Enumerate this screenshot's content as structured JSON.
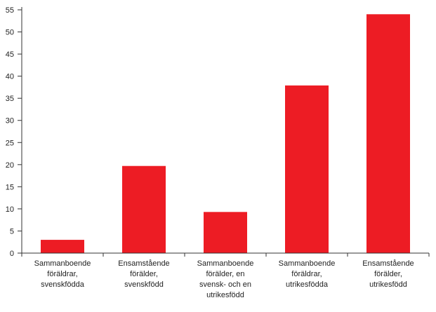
{
  "chart_data": {
    "type": "bar",
    "categories": [
      [
        "Sammanboende",
        "föräldrar,",
        "svenskfödda"
      ],
      [
        "Ensamstående",
        "förälder,",
        "svenskfödd"
      ],
      [
        "Sammanboende",
        "förälder, en",
        "svensk- och en",
        "utrikesfödd"
      ],
      [
        "Sammanboende",
        "föräldrar,",
        "utrikesfödda"
      ],
      [
        "Ensamstående",
        "förälder,",
        "utrikesfödd"
      ]
    ],
    "values": [
      3,
      19.7,
      9.3,
      37.9,
      54
    ],
    "ylim": [
      0,
      55
    ],
    "yticks": [
      0,
      5,
      10,
      15,
      20,
      25,
      30,
      35,
      40,
      45,
      50,
      55
    ],
    "bar_color": "#ed1c24",
    "axis_color": "#333333",
    "grid": false
  }
}
